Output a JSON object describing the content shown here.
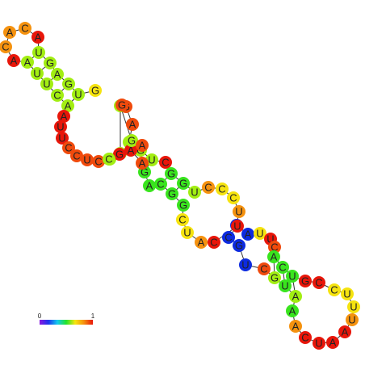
{
  "colors": {
    "red": "#e8160a",
    "orange_red": "#f04a0c",
    "orange": "#f5920f",
    "yellow": "#f5e30f",
    "yellow_green": "#c6f012",
    "green_yellow": "#a2ee12",
    "green": "#39e41e",
    "blue": "#0d2be0",
    "backbone": "#333333",
    "pair": "#333333"
  },
  "nucleotides": [
    {
      "base": "A",
      "color": "#f5920f"
    },
    {
      "base": "C",
      "color": "#f5920f"
    },
    {
      "base": "A",
      "color": "#e8160a"
    },
    {
      "base": "U",
      "color": "#a2ee12"
    },
    {
      "base": "G",
      "color": "#a2ee12"
    },
    {
      "base": "A",
      "color": "#a2ee12"
    },
    {
      "base": "G",
      "color": "#a2ee12"
    },
    {
      "base": "U",
      "color": "#a2ee12"
    },
    {
      "base": "G",
      "color": "#f5e30f"
    },
    {
      "base": "A",
      "color": "#a2ee12"
    },
    {
      "base": "C",
      "color": "#a2ee12"
    },
    {
      "base": "U",
      "color": "#a2ee12"
    },
    {
      "base": "U",
      "color": "#a2ee12"
    },
    {
      "base": "A",
      "color": "#a2ee12"
    },
    {
      "base": "A",
      "color": "#e8160a"
    },
    {
      "base": "C",
      "color": "#f5920f"
    },
    {
      "base": "A",
      "color": "#e8160a"
    },
    {
      "base": "U",
      "color": "#e8160a"
    },
    {
      "base": "U",
      "color": "#e8160a"
    },
    {
      "base": "C",
      "color": "#f04a0c"
    },
    {
      "base": "C",
      "color": "#f04a0c"
    },
    {
      "base": "U",
      "color": "#f04a0c"
    },
    {
      "base": "C",
      "color": "#f04a0c"
    },
    {
      "base": "G",
      "color": "#a2ee12"
    },
    {
      "base": "G",
      "color": "#a2ee12"
    },
    {
      "base": "G",
      "color": "#f04a0c"
    },
    {
      "base": "A",
      "color": "#f04a0c"
    },
    {
      "base": "C",
      "color": "#a2ee12"
    },
    {
      "base": "G",
      "color": "#a2ee12"
    },
    {
      "base": "U",
      "color": "#a2ee12"
    },
    {
      "base": "C",
      "color": "#e8160a"
    },
    {
      "base": "G",
      "color": "#39e41e"
    },
    {
      "base": "G",
      "color": "#39e41e"
    },
    {
      "base": "U",
      "color": "#a2ee12"
    },
    {
      "base": "C",
      "color": "#f5920f"
    },
    {
      "base": "C",
      "color": "#f5e30f"
    },
    {
      "base": "C",
      "color": "#f5e30f"
    },
    {
      "base": "U",
      "color": "#f5920f"
    },
    {
      "base": "U",
      "color": "#0d2be0"
    },
    {
      "base": "A",
      "color": "#0d2be0"
    },
    {
      "base": "U",
      "color": "#f5e30f"
    },
    {
      "base": "U",
      "color": "#e8160a"
    },
    {
      "base": "C",
      "color": "#f04a0c"
    },
    {
      "base": "A",
      "color": "#39e41e"
    },
    {
      "base": "C",
      "color": "#39e41e"
    },
    {
      "base": "U",
      "color": "#39e41e"
    },
    {
      "base": "G",
      "color": "#e8160a"
    },
    {
      "base": "C",
      "color": "#e8160a"
    },
    {
      "base": "C",
      "color": "#f5e30f"
    },
    {
      "base": "U",
      "color": "#f5e30f"
    },
    {
      "base": "U",
      "color": "#f5e30f"
    },
    {
      "base": "U",
      "color": "#f5920f"
    },
    {
      "base": "A",
      "color": "#e8160a"
    },
    {
      "base": "A",
      "color": "#e8160a"
    },
    {
      "base": "U",
      "color": "#e8160a"
    },
    {
      "base": "C",
      "color": "#e8160a"
    },
    {
      "base": "A",
      "color": "#f5920f"
    },
    {
      "base": "A",
      "color": "#39e41e"
    },
    {
      "base": "A",
      "color": "#a2ee12"
    },
    {
      "base": "U",
      "color": "#39e41e"
    },
    {
      "base": "G",
      "color": "#a2ee12"
    },
    {
      "base": "C",
      "color": "#f04a0c"
    },
    {
      "base": "U",
      "color": "#0d2be0"
    },
    {
      "base": "G",
      "color": "#0d2be0"
    },
    {
      "base": "C",
      "color": "#0d2be0"
    },
    {
      "base": "U",
      "color": "#e8160a"
    },
    {
      "base": "C",
      "color": "#e8160a"
    },
    {
      "base": "A",
      "color": "#f5920f"
    },
    {
      "base": "U",
      "color": "#f5e30f"
    },
    {
      "base": "C",
      "color": "#f5e30f"
    },
    {
      "base": "G",
      "color": "#39e41e"
    },
    {
      "base": "G",
      "color": "#39e41e"
    },
    {
      "base": "C",
      "color": "#39e41e"
    },
    {
      "base": "A",
      "color": "#39e41e"
    },
    {
      "base": "G",
      "color": "#39e41e"
    },
    {
      "base": "A",
      "color": "#f04a0c"
    },
    {
      "base": "A",
      "color": "#e8160a"
    },
    {
      "base": "G",
      "color": "#e8160a"
    },
    {
      "base": "C",
      "color": "#a2ee12"
    },
    {
      "base": "G",
      "color": "#a2ee12"
    },
    {
      "base": "G",
      "color": "#a2ee12"
    },
    {
      "base": "A",
      "color": "#f04a0c"
    },
    {
      "base": "G",
      "color": "#f04a0c"
    }
  ],
  "legend": {
    "min_label": "0",
    "max_label": "1",
    "gradient": [
      "#8a16e0",
      "#1c34ec",
      "#13c9ef",
      "#23e32a",
      "#f7e50f",
      "#f58f0e",
      "#e8160a"
    ]
  }
}
